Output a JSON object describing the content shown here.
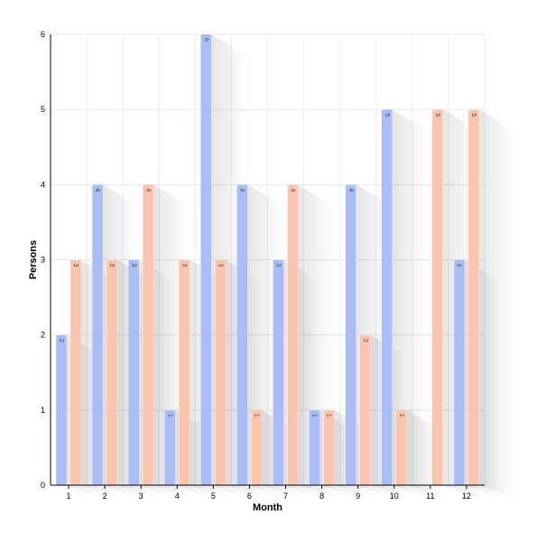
{
  "chart_data": {
    "type": "bar",
    "xlabel": "Month",
    "ylabel": "Persons",
    "categories": [
      "1",
      "2",
      "3",
      "4",
      "5",
      "6",
      "7",
      "8",
      "9",
      "10",
      "11",
      "12"
    ],
    "series": [
      {
        "values": [
          2,
          4,
          3,
          1,
          6,
          4,
          3,
          1,
          4,
          5,
          0,
          3
        ],
        "color": "#a9bcf5"
      },
      {
        "values": [
          3,
          3,
          4,
          3,
          3,
          1,
          4,
          1,
          2,
          1,
          5,
          5
        ],
        "color": "#fbc4ad"
      }
    ],
    "ylim": [
      0,
      6
    ],
    "yticks": [
      "0",
      "1",
      "2",
      "3",
      "4",
      "5",
      "6"
    ],
    "grid": true,
    "data_labels": true
  }
}
